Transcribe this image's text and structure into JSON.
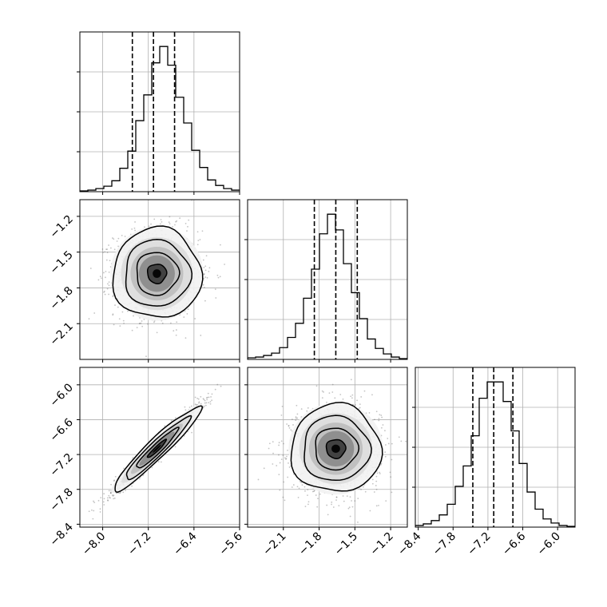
{
  "chart_data": {
    "type": "corner",
    "parameters": [
      "p1",
      "p2",
      "p3"
    ],
    "ticks": {
      "p1": [
        "−8.0",
        "−7.2",
        "−6.4",
        "−5.6"
      ],
      "p2": [
        "−2.1",
        "−1.8",
        "−1.5",
        "−1.2"
      ],
      "p3": [
        "−8.4",
        "−7.8",
        "−7.2",
        "−6.6",
        "−6.0"
      ]
    },
    "y_tick_labels": {
      "row1": [
        "−1.2",
        "−1.5",
        "−1.8",
        "−2.1"
      ],
      "row2": [
        "−6.0",
        "−6.6",
        "−7.2",
        "−7.8",
        "−8.4"
      ]
    },
    "ranges": {
      "p1": [
        -8.4,
        -5.6
      ],
      "p2": [
        -2.4,
        -1.06
      ],
      "p3": [
        -8.45,
        -5.7
      ]
    },
    "tick_values": {
      "p1": [
        -8.0,
        -7.2,
        -6.4,
        -5.6
      ],
      "p2": [
        -2.1,
        -1.8,
        -1.5,
        -1.2
      ],
      "p3": [
        -8.4,
        -7.8,
        -7.2,
        -6.6,
        -6.0
      ]
    },
    "quantiles": {
      "p1": [
        -7.48,
        -7.11,
        -6.74
      ],
      "p2": [
        -1.84,
        -1.66,
        -1.48
      ],
      "p3": [
        -7.46,
        -7.1,
        -6.77
      ]
    },
    "histograms": {
      "p1": {
        "edges_from": -8.4,
        "bin_width": 0.14,
        "counts": [
          1,
          2,
          4,
          7,
          14,
          30,
          52,
          91,
          124,
          165,
          186,
          162,
          121,
          88,
          53,
          31,
          15,
          8,
          4,
          2
        ]
      },
      "p2": {
        "edges_from": -2.4,
        "bin_width": 0.067,
        "counts": [
          2,
          3,
          5,
          8,
          15,
          28,
          46,
          78,
          115,
          160,
          185,
          165,
          122,
          85,
          52,
          26,
          14,
          7,
          3,
          1
        ]
      },
      "p3": {
        "edges_from": -8.45,
        "bin_width": 0.1375,
        "counts": [
          2,
          4,
          8,
          15,
          28,
          50,
          75,
          112,
          158,
          178,
          178,
          154,
          118,
          78,
          43,
          22,
          10,
          5,
          2,
          1
        ]
      }
    },
    "pairs": [
      {
        "x": "p1",
        "y": "p2",
        "center": [
          -7.05,
          -1.68
        ],
        "sd": [
          0.37,
          0.18
        ],
        "corr": 0.0
      },
      {
        "x": "p1",
        "y": "p3",
        "center": [
          -7.05,
          -7.1
        ],
        "sd": [
          0.37,
          0.36
        ],
        "corr": 0.97
      },
      {
        "x": "p2",
        "y": "p3",
        "center": [
          -1.66,
          -7.1
        ],
        "sd": [
          0.18,
          0.36
        ],
        "corr": 0.0
      }
    ],
    "grid": true,
    "title": "",
    "xlabel": "",
    "ylabel": ""
  }
}
